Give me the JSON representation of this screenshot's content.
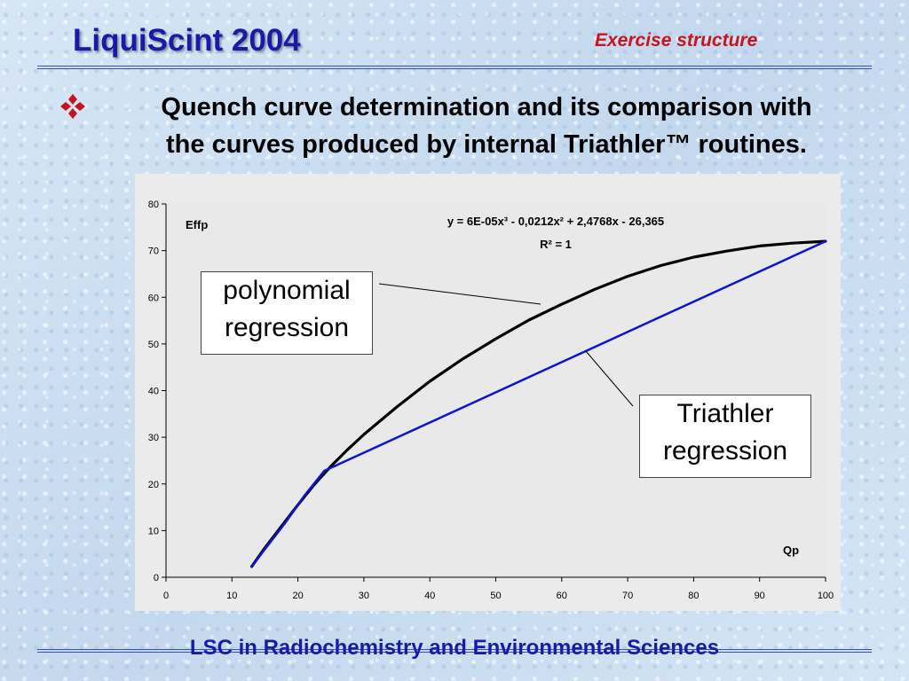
{
  "header": {
    "title": "LiquiScint 2004",
    "subtitle": "Exercise structure"
  },
  "bullet": {
    "icon": "diamond-bullet-icon",
    "line1": "Quench curve determination and its comparison with",
    "line2": "the curves produced by internal Triathler™ routines."
  },
  "footer": {
    "text": "LSC in Radiochemistry and Environmental Sciences"
  },
  "callouts": {
    "polynomial": [
      "polynomial",
      "regression"
    ],
    "triathler": [
      "Triathler",
      "regression"
    ]
  },
  "colors": {
    "title": "#1a1aa8",
    "subtitle": "#c8141e",
    "polynomial_series": "#000000",
    "triathler_series": "#0a14d2",
    "plot_background": "#e9e9e9"
  },
  "chart_data": {
    "type": "line",
    "ylabel": "Effp",
    "xlabel": "Qp",
    "xlim": [
      0,
      100
    ],
    "ylim": [
      0,
      80
    ],
    "x_ticks": [
      0,
      10,
      20,
      30,
      40,
      50,
      60,
      70,
      80,
      90,
      100
    ],
    "y_ticks": [
      0,
      10,
      20,
      30,
      40,
      50,
      60,
      70,
      80
    ],
    "grid": false,
    "legend": "none",
    "annotations": {
      "equation": "y = 6E-05x³ - 0,0212x² + 2,4768x - 26,365",
      "r_squared": "R² = 1"
    },
    "series": [
      {
        "x": [
          13,
          15,
          17.5,
          20,
          22.5,
          25,
          27.5,
          30,
          35,
          40,
          45,
          50,
          55,
          60,
          65,
          70,
          75,
          80,
          85,
          90,
          95,
          100
        ],
        "values": [
          2.3,
          6.3,
          10.9,
          15.5,
          19.9,
          23.8,
          27.3,
          30.6,
          36.5,
          42.0,
          46.8,
          51.1,
          55.1,
          58.5,
          61.7,
          64.5,
          66.8,
          68.6,
          69.9,
          71.0,
          71.6,
          72.0
        ],
        "color": "#000000"
      },
      {
        "x": [
          13,
          15,
          18,
          21,
          24,
          100
        ],
        "values": [
          2.3,
          6.0,
          11.5,
          17.5,
          22.8,
          72.0
        ],
        "color": "#0a14d2"
      }
    ]
  }
}
